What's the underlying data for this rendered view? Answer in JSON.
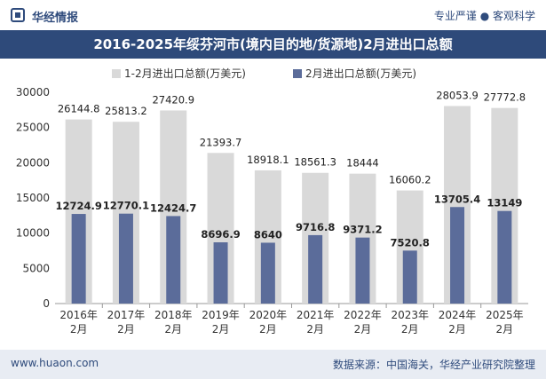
{
  "header": {
    "brand": "华经情报",
    "tagline": "专业严谨 ● 客观科学"
  },
  "title": "2016-2025年绥芬河市(境内目的地/货源地)2月进出口总额",
  "footer": {
    "website": "www.huaon.com",
    "source": "数据来源：中国海关，华经产业研究院整理"
  },
  "colors": {
    "series1": "#d9d9d9",
    "series2": "#5b6c9a",
    "title_bg": "#2e4a7a",
    "footer_bg": "#e8ecf3"
  },
  "chart_data": {
    "type": "bar",
    "categories": [
      "2016年\n2月",
      "2017年\n2月",
      "2018年\n2月",
      "2019年\n2月",
      "2020年\n2月",
      "2021年\n2月",
      "2022年\n2月",
      "2023年\n2月",
      "2024年\n2月",
      "2025年\n2月"
    ],
    "series": [
      {
        "name": "1-2月进出口总额(万美元)",
        "values": [
          26144.8,
          25813.2,
          27420.9,
          21393.7,
          18918.1,
          18561.3,
          18444,
          16060.2,
          28053.9,
          27772.8
        ],
        "labels": [
          "26144.8",
          "25813.2",
          "27420.9",
          "21393.7",
          "18918.1",
          "18561.3",
          "18444",
          "16060.2",
          "28053.9",
          "27772.8"
        ]
      },
      {
        "name": "2月进出口总额(万美元)",
        "values": [
          12724.9,
          12770.1,
          12424.7,
          8696.9,
          8640,
          9716.8,
          9371.2,
          7520.8,
          13705.4,
          13149
        ],
        "labels": [
          "12724.9",
          "12770.1",
          "12424.7",
          "8696.9",
          "8640",
          "9716.8",
          "9371.2",
          "7520.8",
          "13705.4",
          "13149"
        ]
      }
    ],
    "ylim": [
      0,
      30000
    ],
    "yticks": [
      "0",
      "5000",
      "10000",
      "15000",
      "20000",
      "25000",
      "30000"
    ],
    "legend_position": "top-center",
    "grid": false
  }
}
